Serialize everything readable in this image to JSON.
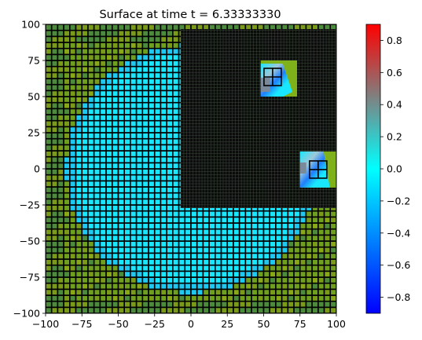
{
  "chart_data": {
    "type": "heatmap",
    "title": "Surface at time t =     6.33333330",
    "xlabel": "",
    "ylabel": "",
    "xlim": [
      -100,
      100
    ],
    "ylim": [
      -100,
      100
    ],
    "x_ticks": [
      -100,
      -75,
      -50,
      -25,
      0,
      25,
      50,
      75,
      100
    ],
    "y_ticks": [
      -100,
      -75,
      -50,
      -25,
      0,
      25,
      50,
      75,
      100
    ],
    "colorbar": {
      "range": [
        -0.9,
        0.9
      ],
      "ticks": [
        -0.8,
        -0.6,
        -0.4,
        -0.2,
        0.0,
        0.2,
        0.4,
        0.6,
        0.8
      ],
      "colors": [
        "#0000ff",
        "#0080ff",
        "#00ffff",
        "#808080",
        "#ff0000"
      ]
    },
    "land_colors": [
      "#6f9f1e",
      "#7a9a1a",
      "#4c8a3c",
      "#88a818"
    ],
    "water_color": "#19e6ff",
    "grid_line_color": "#000000",
    "refined_region": {
      "x": [
        -7,
        100
      ],
      "y": [
        -27,
        100
      ]
    },
    "patches": [
      {
        "x": [
          48,
          73
        ],
        "y": [
          50,
          75
        ],
        "level": 4
      },
      {
        "x": [
          75,
          100
        ],
        "y": [
          -13,
          12
        ],
        "level": 4
      }
    ]
  }
}
